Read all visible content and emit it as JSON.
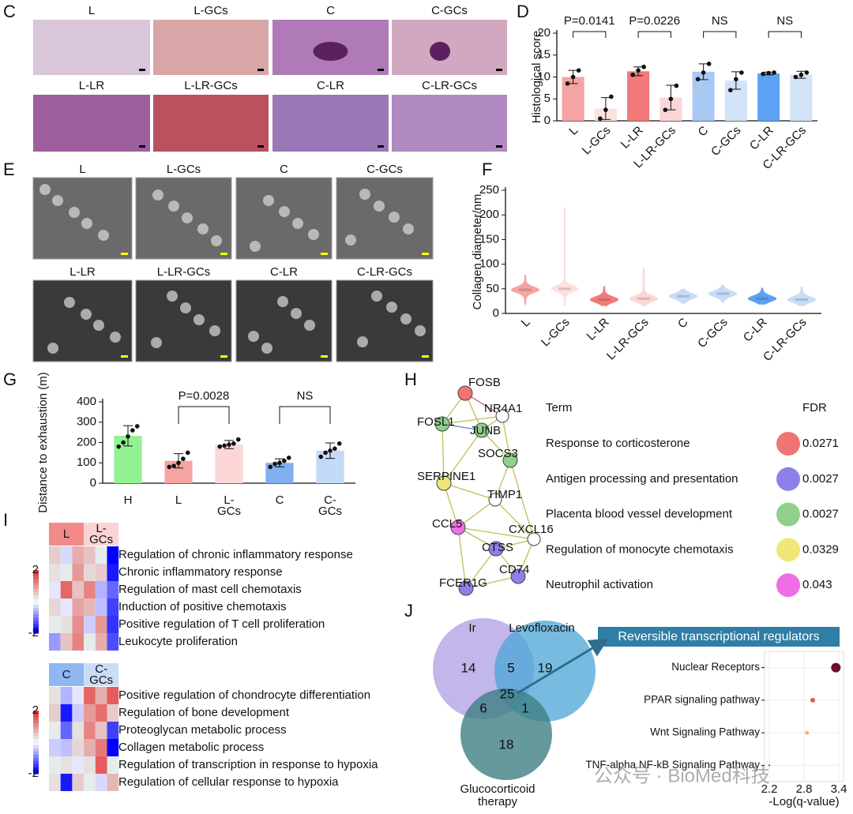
{
  "panel_letters": [
    "C",
    "D",
    "E",
    "F",
    "G",
    "H",
    "I",
    "J"
  ],
  "histology_labels": [
    "L",
    "L-GCs",
    "C",
    "C-GCs",
    "L-LR",
    "L-LR-GCs",
    "C-LR",
    "C-LR-GCs"
  ],
  "tem_labels": [
    "L",
    "L-GCs",
    "C",
    "C-GCs",
    "L-LR",
    "L-LR-GCs",
    "C-LR",
    "C-LR-GCs"
  ],
  "chart_data": [
    {
      "type": "bar",
      "ylabel": "Histological score",
      "categories": [
        "L",
        "L-GCs",
        "L-LR",
        "L-LR-GCs",
        "C",
        "C-GCs",
        "C-LR",
        "C-LR-GCs"
      ],
      "values": [
        10,
        2.8,
        11.3,
        5.3,
        11.2,
        9.2,
        10.8,
        10.5
      ],
      "errors": [
        1.5,
        2.5,
        1,
        2.8,
        1.8,
        2,
        0.3,
        0.8
      ],
      "points": [
        [
          8.5,
          10,
          11.5
        ],
        [
          0.5,
          2.5,
          5.5
        ],
        [
          10.5,
          11.5,
          12.3
        ],
        [
          2.5,
          5,
          8
        ],
        [
          9.5,
          11,
          13
        ],
        [
          7,
          9.5,
          11
        ],
        [
          10.7,
          10.9,
          11
        ],
        [
          10,
          10.5,
          11
        ]
      ],
      "colors": [
        "#f6a3a3",
        "#fde0e0",
        "#f27a7a",
        "#fcd6d6",
        "#a9c9f2",
        "#d2e3f8",
        "#5ca2f2",
        "#d2e3f8"
      ],
      "ylim": [
        0,
        20
      ],
      "yticks": [
        0,
        5,
        10,
        15,
        20
      ],
      "comparisons": [
        {
          "pair": [
            0,
            1
          ],
          "label": "P=0.0141"
        },
        {
          "pair": [
            2,
            3
          ],
          "label": "P=0.0226"
        },
        {
          "pair": [
            4,
            5
          ],
          "label": "NS"
        },
        {
          "pair": [
            6,
            7
          ],
          "label": "NS"
        }
      ]
    },
    {
      "type": "violin",
      "ylabel": "Collagen diameter/nm",
      "categories": [
        "L",
        "L-GCs",
        "L-LR",
        "L-LR-GCs",
        "C",
        "C-GCs",
        "C-LR",
        "C-LR-GCs"
      ],
      "medians": [
        48,
        50,
        28,
        30,
        35,
        40,
        30,
        28
      ],
      "mins": [
        18,
        15,
        15,
        15,
        20,
        22,
        18,
        15
      ],
      "maxs": [
        78,
        215,
        55,
        92,
        50,
        58,
        52,
        55
      ],
      "colors": [
        "#f6a3a3",
        "#fde0e0",
        "#f27a7a",
        "#fcd6d6",
        "#c7dcf6",
        "#c7dcf6",
        "#5ca2f2",
        "#c7dcf6"
      ],
      "ylim": [
        0,
        250
      ],
      "yticks": [
        0,
        50,
        100,
        150,
        200,
        250
      ]
    },
    {
      "type": "bar",
      "ylabel": "Distance to exhaustion (m)",
      "categories": [
        [
          "H"
        ],
        [
          "L"
        ],
        [
          "L-",
          "GCs"
        ],
        [
          "C"
        ],
        [
          "C-",
          "GCs"
        ]
      ],
      "values": [
        233,
        110,
        190,
        100,
        160
      ],
      "errors": [
        50,
        35,
        20,
        20,
        38
      ],
      "points": [
        [
          180,
          200,
          230,
          260,
          280
        ],
        [
          80,
          85,
          100,
          120,
          150
        ],
        [
          180,
          185,
          190,
          195,
          215
        ],
        [
          80,
          95,
          100,
          110,
          125
        ],
        [
          130,
          150,
          160,
          170,
          195
        ]
      ],
      "colors": [
        "#92f292",
        "#f6a3a3",
        "#fcd6d6",
        "#82aff0",
        "#c2d9f8"
      ],
      "ylim": [
        0,
        400
      ],
      "yticks": [
        0,
        100,
        200,
        300,
        400
      ],
      "comparisons": [
        {
          "pair": [
            1,
            2
          ],
          "label": "P=0.0028"
        },
        {
          "pair": [
            3,
            4
          ],
          "label": "NS"
        }
      ]
    },
    {
      "type": "dot",
      "title": "Reversible transcriptional regulators",
      "xlabel": "-Log(q-value)",
      "categories": [
        "Nuclear Receptors",
        "PPAR signaling pathway",
        "Wnt Signaling Pathway",
        "TNF-alpha NF-kB Signaling Pathway"
      ],
      "x": [
        3.35,
        2.95,
        2.85,
        2.2
      ],
      "sizes": [
        6,
        3,
        2.5,
        1
      ],
      "colors": [
        "#6b0f2a",
        "#e0603f",
        "#f5b080",
        "#203060"
      ],
      "xlim": [
        2.2,
        3.4
      ],
      "xticks": [
        2.2,
        2.8,
        3.4
      ],
      "grid": true
    }
  ],
  "network": {
    "nodes": [
      "FOSB",
      "NR4A1",
      "FOSL1",
      "JUNB",
      "SOCS3",
      "SERPINE1",
      "TIMP1",
      "CCL5",
      "CXCL16",
      "CTSS",
      "CD74",
      "FCER1G"
    ]
  },
  "enrichment": {
    "header": [
      "Term",
      "FDR"
    ],
    "rows": [
      [
        "Response to corticosterone",
        "0.0271"
      ],
      [
        "Antigen processing and presentation",
        "0.0027"
      ],
      [
        "Placenta blood vessel development",
        "0.0027"
      ],
      [
        "Regulation of monocyte chemotaxis",
        "0.0329"
      ],
      [
        "Neutrophil activation",
        "0.043"
      ]
    ],
    "colors": [
      "#ef7474",
      "#8d80e8",
      "#8fd08a",
      "#f0e67a",
      "#ee6ee6"
    ]
  },
  "heatmaps": [
    {
      "groups": [
        [
          "L"
        ],
        [
          "L-",
          "GCs"
        ]
      ],
      "group_colors": [
        "#f28a8a",
        "#fcd3d3"
      ],
      "terms": [
        "Regulation of chronic inflammatory response",
        "Chronic inflammatory response",
        "Regulation of mast cell chemotaxis",
        "Induction of positive chemotaxis",
        "Positive regulation of T cell proliferation",
        "Leukocyte proliferation"
      ],
      "values": [
        [
          0.5,
          -0.3,
          0.8,
          0.6,
          0.2,
          -2
        ],
        [
          0.3,
          0.2,
          1,
          0.4,
          0.5,
          -1.8
        ],
        [
          -0.2,
          1.5,
          0.6,
          1.2,
          -0.6,
          -1.2
        ],
        [
          0.4,
          -0.2,
          0.9,
          0.7,
          -0.5,
          -1.5
        ],
        [
          0.2,
          0.3,
          1.1,
          -0.4,
          1,
          -1.6
        ],
        [
          -0.8,
          0.6,
          1.2,
          0.2,
          0.8,
          -1.4
        ]
      ],
      "colorbar_ticks": [
        2,
        -2
      ]
    },
    {
      "groups": [
        [
          "C"
        ],
        [
          "C-",
          "GCs"
        ]
      ],
      "group_colors": [
        "#8fb8f2",
        "#c9ddf8"
      ],
      "terms": [
        "Positive regulation of chondrocyte differentiation",
        "Regulation of bone development",
        "Proteoglycan metabolic process",
        "Collagen metabolic process",
        "Regulation of transcription in response to hypoxia",
        "Regulation of cellular response to hypoxia"
      ],
      "values": [
        [
          0.3,
          -0.6,
          -0.2,
          1.5,
          0.8,
          1.6
        ],
        [
          0.5,
          -1.8,
          -0.4,
          1,
          1.4,
          0.5
        ],
        [
          0.2,
          -1.2,
          0.3,
          1.2,
          0.6,
          -1.5
        ],
        [
          -0.4,
          -0.5,
          0.4,
          0.8,
          1.3,
          -2
        ],
        [
          0.2,
          0.3,
          -0.2,
          0.3,
          1.6,
          0.2
        ],
        [
          0.3,
          -1.8,
          0.5,
          0.2,
          -0.3,
          0.7
        ]
      ],
      "colorbar_ticks": [
        2,
        -2
      ]
    }
  ],
  "venn": {
    "sets": [
      [
        "Ir"
      ],
      [
        "Levofloxacin"
      ],
      [
        "Glucocorticoid",
        "therapy"
      ]
    ],
    "regions": [
      14,
      5,
      19,
      25,
      6,
      1,
      18
    ]
  },
  "watermark": "公众号 · BioMed科技"
}
